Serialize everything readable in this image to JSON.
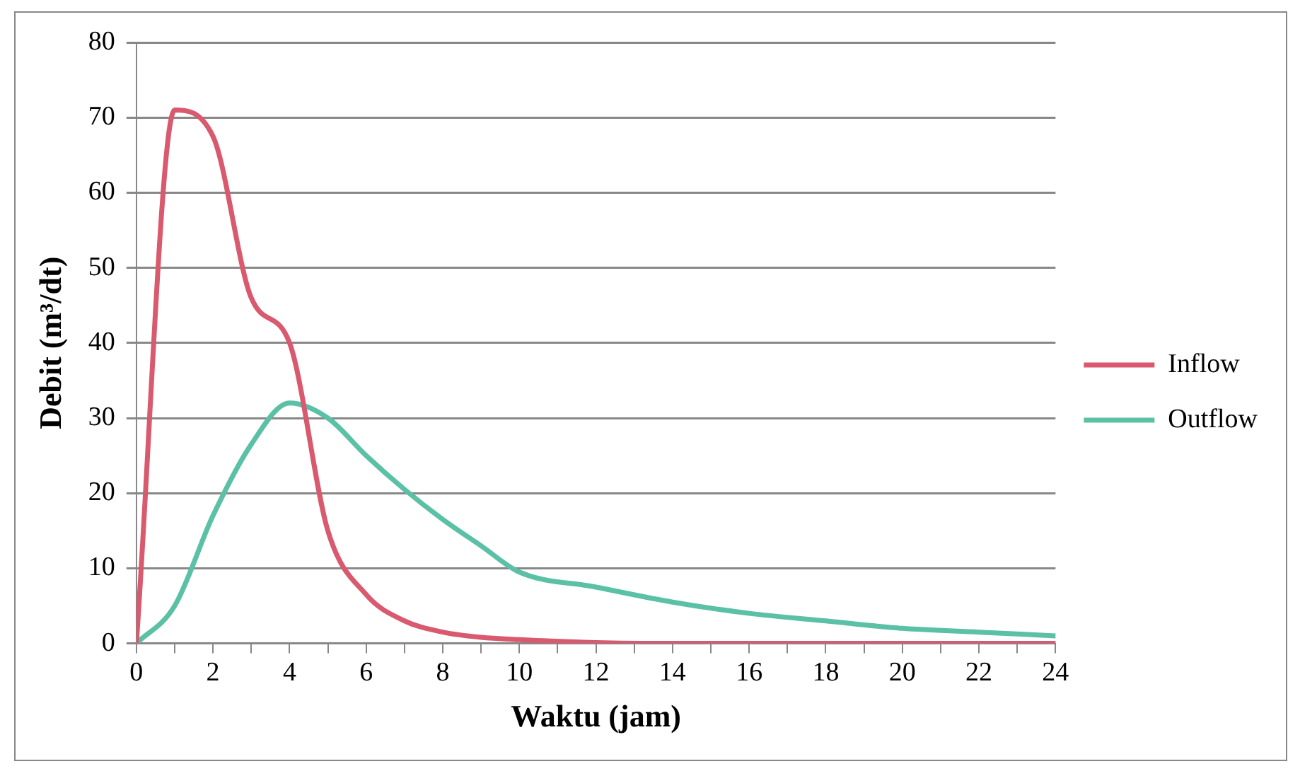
{
  "chart_data": {
    "type": "line",
    "xlabel": "Waktu (jam)",
    "ylabel": "Debit (m³/dt)",
    "x": [
      0,
      1,
      2,
      3,
      4,
      5,
      6,
      7,
      8,
      9,
      10,
      12,
      14,
      16,
      18,
      20,
      22,
      24
    ],
    "series": [
      {
        "name": "Inflow",
        "color": "#d9596e",
        "values": [
          0,
          71,
          67.5,
          46,
          40,
          15,
          6.5,
          3,
          1.5,
          0.8,
          0.5,
          0.1,
          0,
          0,
          0,
          0,
          0,
          0
        ]
      },
      {
        "name": "Outflow",
        "color": "#5bc1a6",
        "values": [
          0,
          5,
          17,
          26.5,
          32,
          30,
          25,
          20.5,
          16.5,
          13,
          9.5,
          7.5,
          5.5,
          4,
          3,
          2,
          1.5,
          1
        ]
      }
    ],
    "xlim": [
      0,
      24
    ],
    "xticks": [
      0,
      {
        "value": 1,
        "label": null
      },
      2,
      {
        "value": 3,
        "label": null
      },
      4,
      {
        "value": 5,
        "label": null
      },
      6,
      {
        "value": 7,
        "label": null
      },
      8,
      {
        "value": 9,
        "label": null
      },
      10,
      {
        "value": 11,
        "label": null
      },
      12,
      {
        "value": 13,
        "label": null
      },
      14,
      {
        "value": 15,
        "label": null
      },
      16,
      {
        "value": 17,
        "label": null
      },
      18,
      {
        "value": 19,
        "label": null
      },
      20,
      {
        "value": 21,
        "label": null
      },
      22,
      {
        "value": 23,
        "label": null
      },
      24
    ],
    "ylim": [
      0,
      80
    ],
    "yticks": [
      0,
      10,
      20,
      30,
      40,
      50,
      60,
      70,
      80
    ],
    "grid": "y",
    "legend": "right",
    "marker": "none",
    "line_style": "solid"
  }
}
